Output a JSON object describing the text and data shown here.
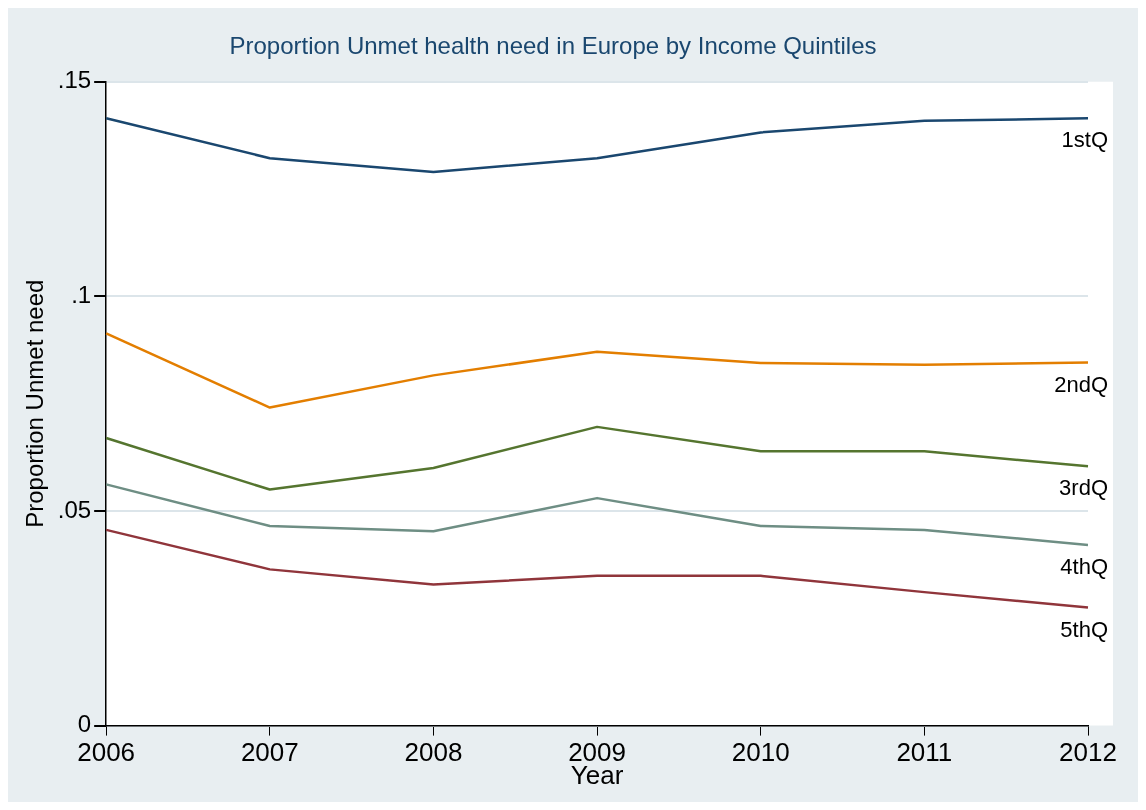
{
  "chart_data": {
    "type": "line",
    "title": "Proportion Unmet health need in Europe by Income Quintiles",
    "xlabel": "Year",
    "ylabel": "Proportion Unmet need",
    "categories": [
      "2006",
      "2007",
      "2008",
      "2009",
      "2010",
      "2011",
      "2012"
    ],
    "ylim": [
      0,
      0.15
    ],
    "yticks": [
      0,
      {
        "value": 0.05,
        "label": ".05"
      },
      {
        "value": 0.1,
        "label": ".1"
      },
      {
        "value": 0.15,
        "label": ".15"
      }
    ],
    "grid": "y",
    "legend": false,
    "marker": "none",
    "line_style": "solid",
    "series": [
      {
        "name": "1stQ",
        "color": "#1a476f",
        "values": [
          0.1415,
          0.1322,
          0.129,
          0.1322,
          0.1382,
          0.1409,
          0.1415
        ]
      },
      {
        "name": "2ndQ",
        "color": "#e37e00",
        "values": [
          0.0914,
          0.0741,
          0.0816,
          0.0871,
          0.0845,
          0.0841,
          0.0846
        ]
      },
      {
        "name": "3rdQ",
        "color": "#55752f",
        "values": [
          0.067,
          0.055,
          0.06,
          0.0696,
          0.0639,
          0.0639,
          0.0604
        ]
      },
      {
        "name": "4thQ",
        "color": "#6e8e84",
        "values": [
          0.0562,
          0.0465,
          0.0453,
          0.053,
          0.0465,
          0.0456,
          0.0421
        ]
      },
      {
        "name": "5thQ",
        "color": "#90353b",
        "values": [
          0.0456,
          0.0364,
          0.0329,
          0.0349,
          0.0349,
          0.0311,
          0.0275
        ]
      }
    ]
  }
}
